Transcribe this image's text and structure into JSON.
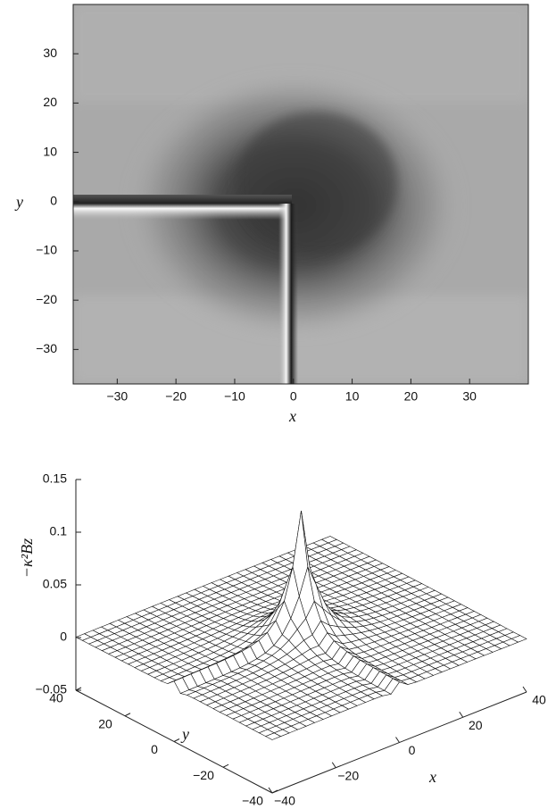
{
  "chart_data": [
    {
      "type": "image",
      "xlabel": "x",
      "ylabel": "y",
      "xlim": [
        -37.5,
        40
      ],
      "ylim": [
        -37,
        40
      ],
      "xticks": [
        {
          "value": -30,
          "label": "−30"
        },
        {
          "value": -20,
          "label": "−20"
        },
        {
          "value": -10,
          "label": "−10"
        },
        0,
        10,
        20,
        30
      ],
      "yticks": [
        {
          "value": -30,
          "label": "−30"
        },
        {
          "value": -20,
          "label": "−20"
        },
        {
          "value": -10,
          "label": "−10"
        },
        0,
        10,
        20,
        30
      ]
    },
    {
      "type": "surface",
      "xlabel": "x",
      "ylabel": "y",
      "zlabel": "−κ²Bz",
      "xlim": [
        -40,
        40
      ],
      "ylim": [
        -40,
        40
      ],
      "zlim": [
        -0.05,
        0.15
      ],
      "xticks": [
        {
          "value": -40,
          "label": "−40"
        },
        {
          "value": -20,
          "label": "−20"
        },
        0,
        20,
        40
      ],
      "yticks": [
        {
          "value": -40,
          "label": "−40"
        },
        {
          "value": -20,
          "label": "−20"
        },
        0,
        20,
        40
      ],
      "zticks": [
        {
          "value": -0.05,
          "label": "−0.05"
        },
        0,
        0.05,
        0.1,
        0.15
      ]
    }
  ]
}
